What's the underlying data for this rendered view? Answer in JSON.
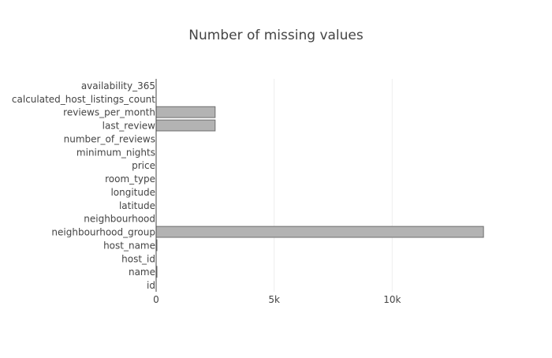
{
  "chart_data": {
    "type": "bar",
    "orientation": "horizontal",
    "title": "Number of missing values",
    "xlabel": "",
    "ylabel": "",
    "categories": [
      "id",
      "name",
      "host_id",
      "host_name",
      "neighbourhood_group",
      "neighbourhood",
      "latitude",
      "longitude",
      "room_type",
      "price",
      "minimum_nights",
      "number_of_reviews",
      "last_review",
      "reviews_per_month",
      "calculated_host_listings_count",
      "availability_365"
    ],
    "values": [
      0,
      16,
      0,
      21,
      13870,
      0,
      0,
      0,
      0,
      0,
      0,
      0,
      2500,
      2500,
      0,
      0
    ],
    "xlim": [
      0,
      14500
    ],
    "x_ticks": [
      0,
      5000,
      10000
    ],
    "x_tick_labels": [
      "0",
      "5k",
      "10k"
    ],
    "grid": true,
    "legend": "none",
    "bar_color": "#b3b3b3",
    "bar_edge_color": "#6e6e6e"
  }
}
